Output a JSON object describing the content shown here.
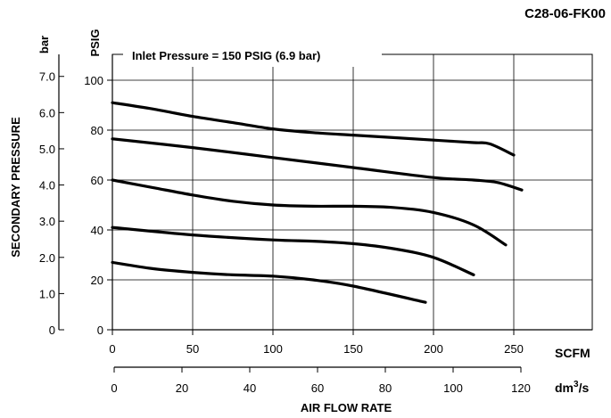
{
  "chart_data": {
    "type": "line",
    "code": "C28-06-FK00",
    "annotation": "Inlet Pressure = 150 PSIG (6.9 bar)",
    "ylabel": "SECONDARY PRESSURE",
    "xlabel": "AIR FLOW RATE",
    "x_units": {
      "primary": "SCFM",
      "secondary_base": "dm",
      "secondary_sup": "3",
      "secondary_tail": "/s"
    },
    "y_units": {
      "primary": "PSIG",
      "secondary": "bar"
    },
    "xlim": [
      0,
      250
    ],
    "ylim_psig": [
      0,
      100
    ],
    "x_ticks_scfm": [
      "0",
      "50",
      "100",
      "150",
      "200",
      "250"
    ],
    "x_tick_values_scfm": [
      0,
      50,
      100,
      150,
      200,
      250
    ],
    "x_ticks_dm3s": [
      "0",
      "20",
      "40",
      "60",
      "80",
      "100",
      "120"
    ],
    "x_tick_values_dm3s": [
      0,
      20,
      40,
      60,
      80,
      100,
      120
    ],
    "y_ticks_psig": [
      "0",
      "20",
      "40",
      "60",
      "80",
      "100"
    ],
    "y_tick_values_psig": [
      0,
      20,
      40,
      60,
      80,
      100
    ],
    "y_ticks_bar": [
      "0",
      "1.0",
      "2.0",
      "3.0",
      "4.0",
      "5.0",
      "6.0",
      "7.0"
    ],
    "y_tick_values_bar": [
      0,
      1,
      2,
      3,
      4,
      5,
      6,
      7
    ],
    "grid": true,
    "series": [
      {
        "x": [
          0,
          25,
          50,
          75,
          100,
          125,
          150,
          175,
          200,
          225,
          235,
          250
        ],
        "y": [
          91,
          88.5,
          85.5,
          83,
          80.5,
          79,
          78,
          77,
          76,
          75,
          74.5,
          70
        ]
      },
      {
        "x": [
          0,
          50,
          100,
          150,
          200,
          225,
          240,
          255
        ],
        "y": [
          76.5,
          73,
          69,
          65,
          61,
          60,
          59,
          56
        ]
      },
      {
        "x": [
          0,
          25,
          50,
          75,
          100,
          125,
          150,
          175,
          200,
          225,
          245
        ],
        "y": [
          60,
          57,
          54,
          51.5,
          50,
          49.5,
          49.5,
          49,
          47,
          42,
          34
        ]
      },
      {
        "x": [
          0,
          50,
          100,
          125,
          150,
          175,
          200,
          225
        ],
        "y": [
          41,
          38,
          36,
          35.5,
          34.5,
          32.5,
          29,
          22
        ]
      },
      {
        "x": [
          0,
          25,
          50,
          75,
          100,
          125,
          150,
          195
        ],
        "y": [
          27,
          24.5,
          23,
          22,
          21.5,
          20,
          17.5,
          11
        ]
      }
    ]
  }
}
